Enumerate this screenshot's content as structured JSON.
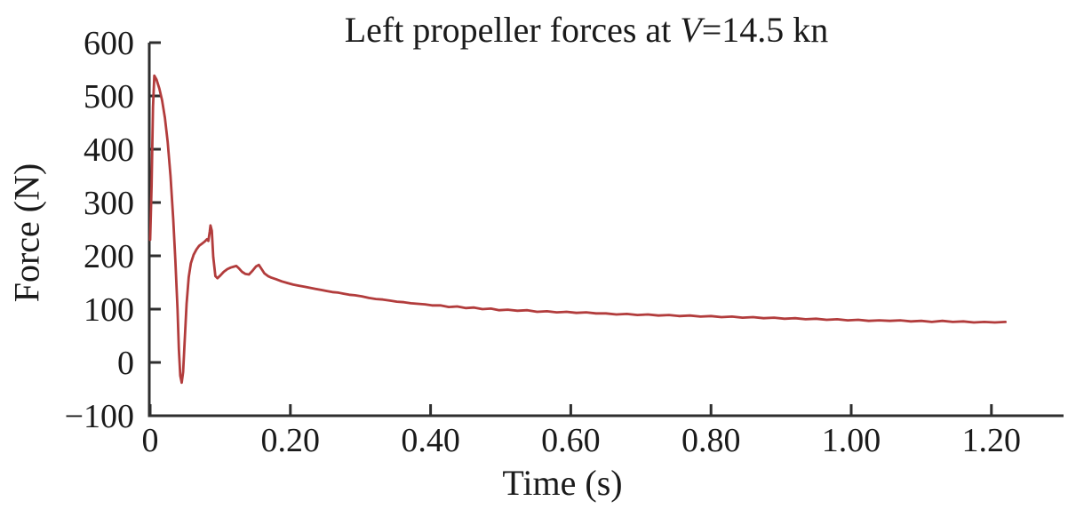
{
  "page": {
    "background": "#ffffff"
  },
  "header": {
    "title_prefix": "Left propeller forces at ",
    "title_variable": "V",
    "title_suffix": "=14.5 kn"
  },
  "axes": {
    "x_label": "Time (s)",
    "y_label": "Force (N)"
  },
  "chart_data": {
    "type": "line",
    "title": "Left propeller forces at V=14.5 kn",
    "xlabel": "Time (s)",
    "ylabel": "Force (N)",
    "xlim": [
      0,
      1.3
    ],
    "ylim": [
      -100,
      600
    ],
    "grid": false,
    "legend": "none",
    "line_color": "#b23c3c",
    "axis_color": "#2e2e2e",
    "x_ticks": [
      {
        "v": 0.0,
        "label": "0"
      },
      {
        "v": 0.2,
        "label": "0.20"
      },
      {
        "v": 0.4,
        "label": "0.40"
      },
      {
        "v": 0.6,
        "label": "0.60"
      },
      {
        "v": 0.8,
        "label": "0.80"
      },
      {
        "v": 1.0,
        "label": "1.00"
      },
      {
        "v": 1.2,
        "label": "1.20"
      }
    ],
    "y_ticks": [
      {
        "v": 600,
        "label": "600"
      },
      {
        "v": 500,
        "label": "500"
      },
      {
        "v": 400,
        "label": "400"
      },
      {
        "v": 300,
        "label": "300"
      },
      {
        "v": 200,
        "label": "200"
      },
      {
        "v": 100,
        "label": "100"
      },
      {
        "v": 0,
        "label": "0"
      },
      {
        "v": -100,
        "label": "−100"
      }
    ],
    "series": [
      {
        "name": "Left propeller force",
        "points": [
          [
            0.0,
            230
          ],
          [
            0.002,
            330
          ],
          [
            0.004,
            480
          ],
          [
            0.006,
            538
          ],
          [
            0.009,
            531
          ],
          [
            0.013,
            514
          ],
          [
            0.017,
            492
          ],
          [
            0.021,
            459
          ],
          [
            0.025,
            414
          ],
          [
            0.029,
            350
          ],
          [
            0.033,
            268
          ],
          [
            0.036,
            190
          ],
          [
            0.039,
            100
          ],
          [
            0.041,
            25
          ],
          [
            0.043,
            -25
          ],
          [
            0.045,
            -38
          ],
          [
            0.047,
            -18
          ],
          [
            0.049,
            35
          ],
          [
            0.052,
            110
          ],
          [
            0.055,
            160
          ],
          [
            0.058,
            186
          ],
          [
            0.062,
            202
          ],
          [
            0.066,
            212
          ],
          [
            0.07,
            219
          ],
          [
            0.074,
            223
          ],
          [
            0.078,
            227
          ],
          [
            0.081,
            231
          ],
          [
            0.083,
            228
          ],
          [
            0.085,
            246
          ],
          [
            0.086,
            257
          ],
          [
            0.088,
            247
          ],
          [
            0.09,
            198
          ],
          [
            0.093,
            162
          ],
          [
            0.096,
            158
          ],
          [
            0.1,
            163
          ],
          [
            0.105,
            170
          ],
          [
            0.11,
            175
          ],
          [
            0.115,
            178
          ],
          [
            0.12,
            180
          ],
          [
            0.123,
            181
          ],
          [
            0.127,
            176
          ],
          [
            0.131,
            170
          ],
          [
            0.136,
            166
          ],
          [
            0.141,
            165
          ],
          [
            0.146,
            172
          ],
          [
            0.151,
            180
          ],
          [
            0.155,
            183
          ],
          [
            0.159,
            175
          ],
          [
            0.163,
            167
          ],
          [
            0.168,
            162
          ],
          [
            0.173,
            159
          ],
          [
            0.18,
            156
          ],
          [
            0.188,
            152
          ],
          [
            0.196,
            149
          ],
          [
            0.204,
            146
          ],
          [
            0.212,
            144
          ],
          [
            0.22,
            142
          ],
          [
            0.228,
            140
          ],
          [
            0.236,
            138
          ],
          [
            0.244,
            136
          ],
          [
            0.252,
            134
          ],
          [
            0.26,
            132
          ],
          [
            0.268,
            131
          ],
          [
            0.276,
            129
          ],
          [
            0.284,
            127
          ],
          [
            0.292,
            126
          ],
          [
            0.302,
            124
          ],
          [
            0.312,
            121
          ],
          [
            0.322,
            119
          ],
          [
            0.332,
            118
          ],
          [
            0.342,
            116
          ],
          [
            0.352,
            114
          ],
          [
            0.362,
            113
          ],
          [
            0.372,
            111
          ],
          [
            0.382,
            110
          ],
          [
            0.392,
            109
          ],
          [
            0.402,
            107
          ],
          [
            0.414,
            107
          ],
          [
            0.426,
            104
          ],
          [
            0.438,
            105
          ],
          [
            0.45,
            102
          ],
          [
            0.462,
            103
          ],
          [
            0.474,
            100
          ],
          [
            0.486,
            101
          ],
          [
            0.498,
            98
          ],
          [
            0.51,
            99
          ],
          [
            0.524,
            97
          ],
          [
            0.538,
            98
          ],
          [
            0.552,
            95
          ],
          [
            0.566,
            96
          ],
          [
            0.58,
            94
          ],
          [
            0.594,
            95
          ],
          [
            0.608,
            93
          ],
          [
            0.622,
            94
          ],
          [
            0.636,
            92
          ],
          [
            0.65,
            92
          ],
          [
            0.665,
            90
          ],
          [
            0.68,
            91
          ],
          [
            0.695,
            89
          ],
          [
            0.71,
            90
          ],
          [
            0.725,
            88
          ],
          [
            0.74,
            89
          ],
          [
            0.755,
            87
          ],
          [
            0.77,
            88
          ],
          [
            0.785,
            86
          ],
          [
            0.8,
            87
          ],
          [
            0.815,
            85
          ],
          [
            0.83,
            86
          ],
          [
            0.845,
            84
          ],
          [
            0.86,
            85
          ],
          [
            0.875,
            83
          ],
          [
            0.89,
            84
          ],
          [
            0.905,
            82
          ],
          [
            0.92,
            83
          ],
          [
            0.935,
            81
          ],
          [
            0.95,
            82
          ],
          [
            0.965,
            80
          ],
          [
            0.98,
            81
          ],
          [
            0.995,
            79
          ],
          [
            1.01,
            80
          ],
          [
            1.025,
            78
          ],
          [
            1.04,
            79
          ],
          [
            1.055,
            78
          ],
          [
            1.07,
            79
          ],
          [
            1.085,
            77
          ],
          [
            1.1,
            78
          ],
          [
            1.115,
            76
          ],
          [
            1.13,
            78
          ],
          [
            1.145,
            76
          ],
          [
            1.16,
            77
          ],
          [
            1.175,
            75
          ],
          [
            1.19,
            76
          ],
          [
            1.205,
            75
          ],
          [
            1.22,
            76
          ]
        ]
      }
    ]
  }
}
